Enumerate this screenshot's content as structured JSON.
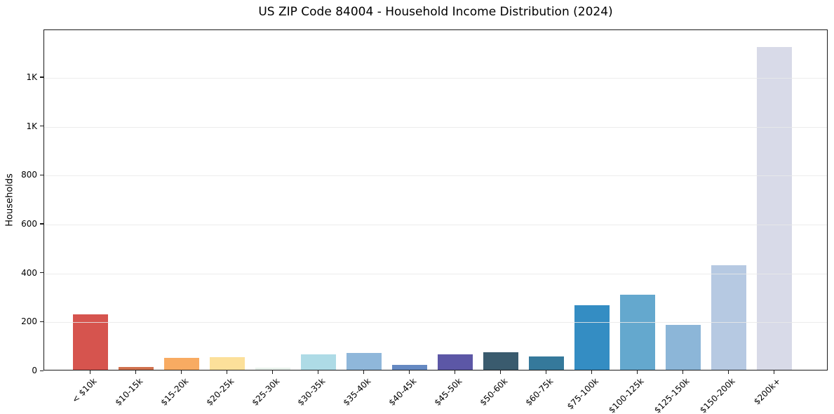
{
  "chart_data": {
    "type": "bar",
    "title": "US ZIP Code 84004 - Household Income Distribution (2024)",
    "xlabel": "",
    "ylabel": "Households",
    "categories": [
      "< $10k",
      "$10-15k",
      "$15-20k",
      "$20-25k",
      "$25-30k",
      "$30-35k",
      "$35-40k",
      "$40-45k",
      "$45-50k",
      "$50-60k",
      "$60-75k",
      "$75-100k",
      "$100-125k",
      "$125-150k",
      "$150-200k",
      "$200k+"
    ],
    "values": [
      228,
      12,
      49,
      52,
      9,
      62,
      68,
      20,
      64,
      73,
      55,
      265,
      307,
      184,
      428,
      1320
    ],
    "bar_colors": [
      "#d6544e",
      "#d0714e",
      "#f8ab62",
      "#fce09a",
      "#e9f2ec",
      "#aedbe6",
      "#8fb7da",
      "#6589c2",
      "#5c57a6",
      "#3a5b6e",
      "#35799b",
      "#348dc3",
      "#64a8ce",
      "#8cb6d8",
      "#b6c9e2",
      "#d8dae8"
    ],
    "yticks": [
      {
        "value": 0,
        "label": "0"
      },
      {
        "value": 200,
        "label": "200"
      },
      {
        "value": 400,
        "label": "400"
      },
      {
        "value": 600,
        "label": "600"
      },
      {
        "value": 800,
        "label": "800"
      },
      {
        "value": 1000,
        "label": "1K"
      },
      {
        "value": 1200,
        "label": "1K"
      }
    ],
    "ylim": [
      0,
      1395
    ],
    "grid": "horizontal",
    "legend": "none",
    "background_color": "#ffffff",
    "spine_color": "#1a1a1a",
    "gridline_color": "#e9e9e9"
  }
}
